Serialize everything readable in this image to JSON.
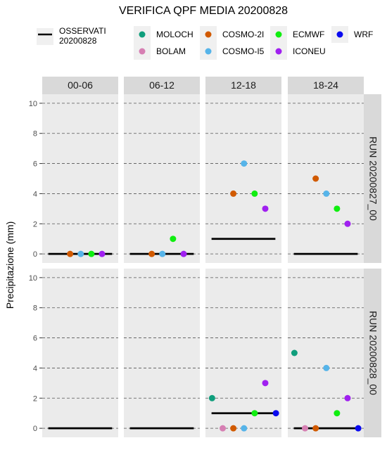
{
  "chart_data": {
    "type": "scatter",
    "title": "VERIFICA QPF MEDIA 20200828",
    "ylabel": "Precipitazione (mm)",
    "xlabel": "",
    "ylim": [
      -0.6,
      10.6
    ],
    "y_ticks": [
      0,
      2,
      4,
      6,
      8,
      10
    ],
    "grid": true,
    "legend": {
      "placement": "top",
      "observed_label": [
        "OSSERVATI",
        "20200828"
      ],
      "models": [
        {
          "name": "MOLOCH",
          "color": "#0f9e7c"
        },
        {
          "name": "BOLAM",
          "color": "#d67fb3"
        },
        {
          "name": "COSMO-2I",
          "color": "#d15a00"
        },
        {
          "name": "COSMO-I5",
          "color": "#56b4e9"
        },
        {
          "name": "ECMWF",
          "color": "#10ee10"
        },
        {
          "name": "ICONEU",
          "color": "#a020f0"
        },
        {
          "name": "WRF",
          "color": "#0a0af0"
        }
      ]
    },
    "columns": [
      "00-06",
      "06-12",
      "12-18",
      "18-24"
    ],
    "rows": [
      "RUN 20200827_00",
      "RUN 20200828_00"
    ],
    "observed": [
      [
        0,
        0,
        1.0,
        0
      ],
      [
        0,
        0,
        1.0,
        0
      ]
    ],
    "forecasts": [
      [
        {
          "COSMO-2I": 0,
          "COSMO-I5": 0,
          "ECMWF": 0,
          "ICONEU": 0
        },
        {
          "COSMO-2I": 0,
          "COSMO-I5": 0,
          "ECMWF": 1,
          "ICONEU": 0
        },
        {
          "COSMO-2I": 4,
          "COSMO-I5": 6,
          "ECMWF": 4,
          "ICONEU": 3
        },
        {
          "COSMO-2I": 5,
          "COSMO-I5": 4,
          "ECMWF": 3,
          "ICONEU": 2
        }
      ],
      [
        {},
        {},
        {
          "MOLOCH": 2,
          "BOLAM": 0,
          "COSMO-2I": 0,
          "COSMO-I5": 0,
          "ECMWF": 1,
          "ICONEU": 3,
          "WRF": 1
        },
        {
          "MOLOCH": 5,
          "BOLAM": 0,
          "COSMO-2I": 0,
          "COSMO-I5": 4,
          "ECMWF": 1,
          "ICONEU": 2,
          "WRF": 0
        }
      ]
    ]
  }
}
